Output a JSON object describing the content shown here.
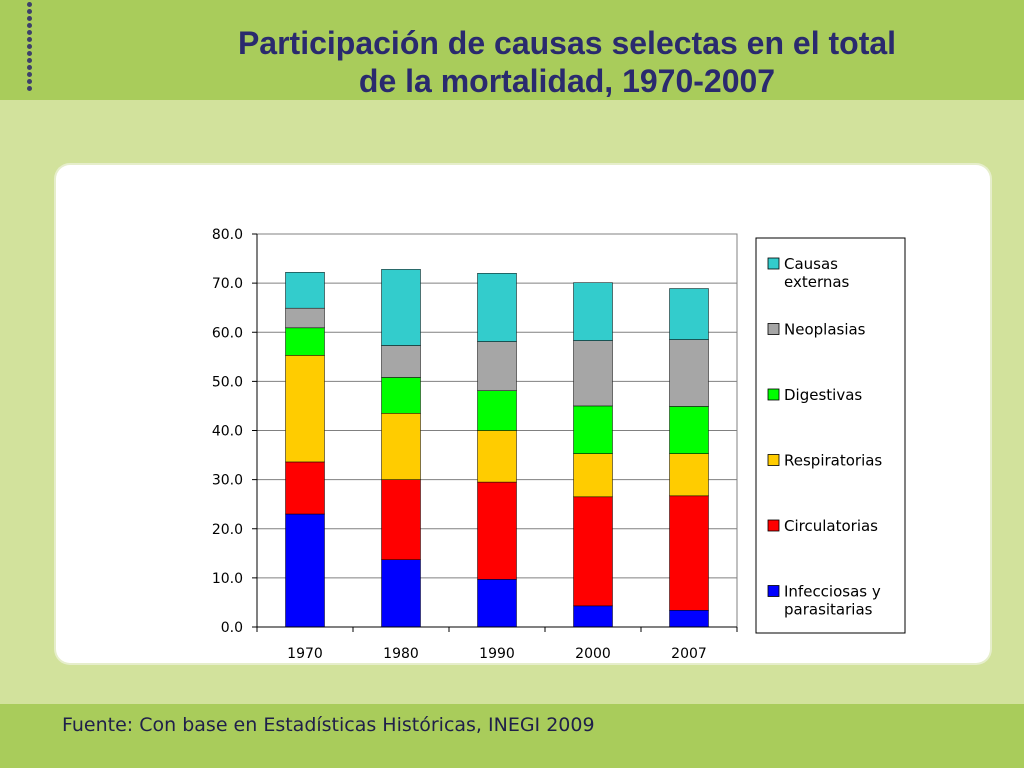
{
  "title": {
    "line1": "Participación de causas selectas en el total",
    "line2": "de la mortalidad, 1970-2007"
  },
  "source": "Fuente: Con base en Estadísticas Históricas, INEGI 2009",
  "chart_data": {
    "type": "bar",
    "stacked": true,
    "categories": [
      "1970",
      "1980",
      "1990",
      "2000",
      "2007"
    ],
    "ylim": [
      0,
      80
    ],
    "yticks": [
      "0.0",
      "10.0",
      "20.0",
      "30.0",
      "40.0",
      "50.0",
      "60.0",
      "70.0",
      "80.0"
    ],
    "grid": true,
    "legend_position": "right",
    "series": [
      {
        "name": "Infecciosas y parasitarias",
        "legend_lines": [
          "Infecciosas y",
          "parasitarias"
        ],
        "color": "#0000ff",
        "values": [
          23.0,
          13.7,
          9.7,
          4.3,
          3.4
        ]
      },
      {
        "name": "Circulatorias",
        "legend_lines": [
          "Circulatorias"
        ],
        "color": "#ff0000",
        "values": [
          10.6,
          16.3,
          19.8,
          22.2,
          23.3
        ]
      },
      {
        "name": "Respiratorias",
        "legend_lines": [
          "Respiratorias"
        ],
        "color": "#ffcc00",
        "values": [
          21.7,
          13.5,
          10.5,
          8.8,
          8.6
        ]
      },
      {
        "name": "Digestivas",
        "legend_lines": [
          "Digestivas"
        ],
        "color": "#00ff00",
        "values": [
          5.6,
          7.3,
          8.1,
          9.7,
          9.6
        ]
      },
      {
        "name": "Neoplasias",
        "legend_lines": [
          "Neoplasias"
        ],
        "color": "#a6a6a6",
        "values": [
          4.0,
          6.5,
          10.0,
          13.3,
          13.6
        ]
      },
      {
        "name": "Causas externas",
        "legend_lines": [
          "Causas",
          "externas"
        ],
        "color": "#33cccc",
        "values": [
          7.3,
          15.5,
          13.9,
          11.8,
          10.4
        ]
      }
    ]
  }
}
